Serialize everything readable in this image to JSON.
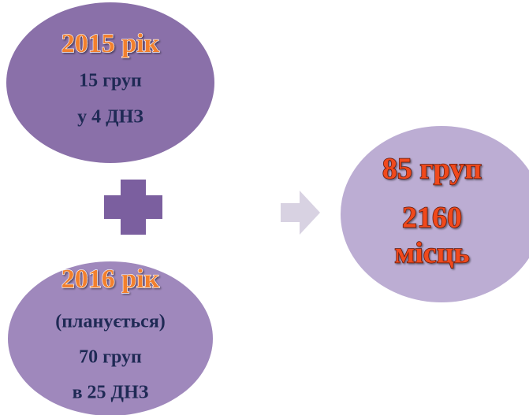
{
  "nodes": [
    {
      "lines": [
        "2015 рік",
        "15 груп",
        "у 4 ДНЗ"
      ]
    },
    {
      "lines": [
        "2016 рік",
        "(планується)",
        "70 груп",
        "в 25 ДНЗ"
      ]
    },
    {
      "lines": [
        "85 груп",
        "2160",
        "місць"
      ]
    }
  ]
}
